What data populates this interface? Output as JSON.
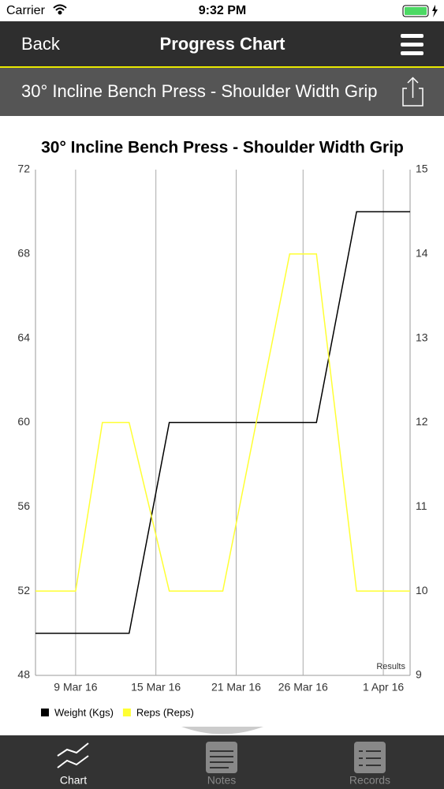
{
  "status_bar": {
    "carrier": "Carrier",
    "time": "9:32 PM"
  },
  "nav": {
    "back": "Back",
    "title": "Progress Chart"
  },
  "exercise": "30° Incline Bench Press - Shoulder Width Grip",
  "chart_data": {
    "type": "line",
    "title": "30° Incline Bench Press - Shoulder Width Grip",
    "x": [
      "2016-03-06",
      "2016-03-09",
      "2016-03-11",
      "2016-03-13",
      "2016-03-16",
      "2016-03-20",
      "2016-03-25",
      "2016-03-27",
      "2016-03-30",
      "2016-04-03"
    ],
    "series": [
      {
        "name": "Weight (Kgs)",
        "color": "#000000",
        "values": [
          50,
          50,
          50,
          50,
          60,
          60,
          60,
          60,
          70,
          70
        ]
      },
      {
        "name": "Reps (Reps)",
        "color": "#ffff33",
        "axis": "y2",
        "values": [
          10,
          10,
          12,
          12,
          10,
          10,
          14,
          14,
          10,
          10
        ]
      }
    ],
    "xlim": [
      "2016-03-06",
      "2016-04-03"
    ],
    "xticks": [
      {
        "value": "2016-03-09",
        "label": "9 Mar 16"
      },
      {
        "value": "2016-03-15",
        "label": "15 Mar 16"
      },
      {
        "value": "2016-03-21",
        "label": "21 Mar 16"
      },
      {
        "value": "2016-03-26",
        "label": "26 Mar 16"
      },
      {
        "value": "2016-04-01",
        "label": "1 Apr 16"
      }
    ],
    "ylim": [
      48,
      72
    ],
    "yticks": [
      48,
      52,
      56,
      60,
      64,
      68,
      72
    ],
    "y2lim": [
      9,
      15
    ],
    "y2ticks": [
      9,
      10,
      11,
      12,
      13,
      14,
      15
    ],
    "grid": "x",
    "legend": "bottom-left",
    "annotation": "Results"
  },
  "tabs": [
    {
      "label": "Chart"
    },
    {
      "label": "Notes"
    },
    {
      "label": "Records"
    }
  ]
}
